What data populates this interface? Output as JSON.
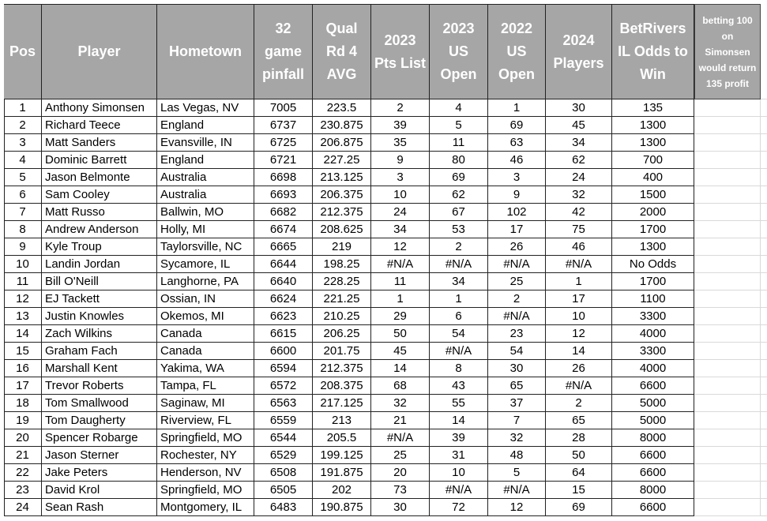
{
  "table": {
    "header": [
      "Pos",
      "Player",
      "Hometown",
      "32 game pinfall",
      "Qual Rd 4 AVG",
      "2023 Pts List",
      "2023 US Open",
      "2022 US Open",
      "2024 Players",
      "BetRivers IL Odds to Win"
    ],
    "note": "betting 100 on Simonsen would return 135 profit",
    "rows": [
      [
        "1",
        "Anthony Simonsen",
        "Las Vegas, NV",
        "7005",
        "223.5",
        "2",
        "4",
        "1",
        "30",
        "135"
      ],
      [
        "2",
        "Richard Teece",
        "England",
        "6737",
        "230.875",
        "39",
        "5",
        "69",
        "45",
        "1300"
      ],
      [
        "3",
        "Matt Sanders",
        "Evansville, IN",
        "6725",
        "206.875",
        "35",
        "11",
        "63",
        "34",
        "1300"
      ],
      [
        "4",
        "Dominic Barrett",
        "England",
        "6721",
        "227.25",
        "9",
        "80",
        "46",
        "62",
        "700"
      ],
      [
        "5",
        "Jason Belmonte",
        "Australia",
        "6698",
        "213.125",
        "3",
        "69",
        "3",
        "24",
        "400"
      ],
      [
        "6",
        "Sam Cooley",
        "Australia",
        "6693",
        "206.375",
        "10",
        "62",
        "9",
        "32",
        "1500"
      ],
      [
        "7",
        "Matt Russo",
        "Ballwin, MO",
        "6682",
        "212.375",
        "24",
        "67",
        "102",
        "42",
        "2000"
      ],
      [
        "8",
        "Andrew Anderson",
        "Holly, MI",
        "6674",
        "208.625",
        "34",
        "53",
        "17",
        "75",
        "1700"
      ],
      [
        "9",
        "Kyle Troup",
        "Taylorsville, NC",
        "6665",
        "219",
        "12",
        "2",
        "26",
        "46",
        "1300"
      ],
      [
        "10",
        "Landin Jordan",
        "Sycamore, IL",
        "6644",
        "198.25",
        "#N/A",
        "#N/A",
        "#N/A",
        "#N/A",
        "No Odds"
      ],
      [
        "11",
        "Bill O'Neill",
        "Langhorne, PA",
        "6640",
        "228.25",
        "11",
        "34",
        "25",
        "1",
        "1700"
      ],
      [
        "12",
        "EJ Tackett",
        "Ossian, IN",
        "6624",
        "221.25",
        "1",
        "1",
        "2",
        "17",
        "1100"
      ],
      [
        "13",
        "Justin Knowles",
        "Okemos, MI",
        "6623",
        "210.25",
        "29",
        "6",
        "#N/A",
        "10",
        "3300"
      ],
      [
        "14",
        "Zach Wilkins",
        "Canada",
        "6615",
        "206.25",
        "50",
        "54",
        "23",
        "12",
        "4000"
      ],
      [
        "15",
        "Graham Fach",
        "Canada",
        "6600",
        "201.75",
        "45",
        "#N/A",
        "54",
        "14",
        "3300"
      ],
      [
        "16",
        "Marshall Kent",
        "Yakima, WA",
        "6594",
        "212.375",
        "14",
        "8",
        "30",
        "26",
        "4000"
      ],
      [
        "17",
        "Trevor Roberts",
        "Tampa, FL",
        "6572",
        "208.375",
        "68",
        "43",
        "65",
        "#N/A",
        "6600"
      ],
      [
        "18",
        "Tom Smallwood",
        "Saginaw, MI",
        "6563",
        "217.125",
        "32",
        "55",
        "37",
        "2",
        "5000"
      ],
      [
        "19",
        "Tom Daugherty",
        "Riverview, FL",
        "6559",
        "213",
        "21",
        "14",
        "7",
        "65",
        "5000"
      ],
      [
        "20",
        "Spencer Robarge",
        "Springfield, MO",
        "6544",
        "205.5",
        "#N/A",
        "39",
        "32",
        "28",
        "8000"
      ],
      [
        "21",
        "Jason Sterner",
        "Rochester, NY",
        "6529",
        "199.125",
        "25",
        "31",
        "48",
        "50",
        "6600"
      ],
      [
        "22",
        "Jake Peters",
        "Henderson, NV",
        "6508",
        "191.875",
        "20",
        "10",
        "5",
        "64",
        "6600"
      ],
      [
        "23",
        "David Krol",
        "Springfield, MO",
        "6505",
        "202",
        "73",
        "#N/A",
        "#N/A",
        "15",
        "8000"
      ],
      [
        "24",
        "Sean Rash",
        "Montgomery, IL",
        "6483",
        "190.875",
        "30",
        "72",
        "12",
        "69",
        "6600"
      ]
    ]
  }
}
